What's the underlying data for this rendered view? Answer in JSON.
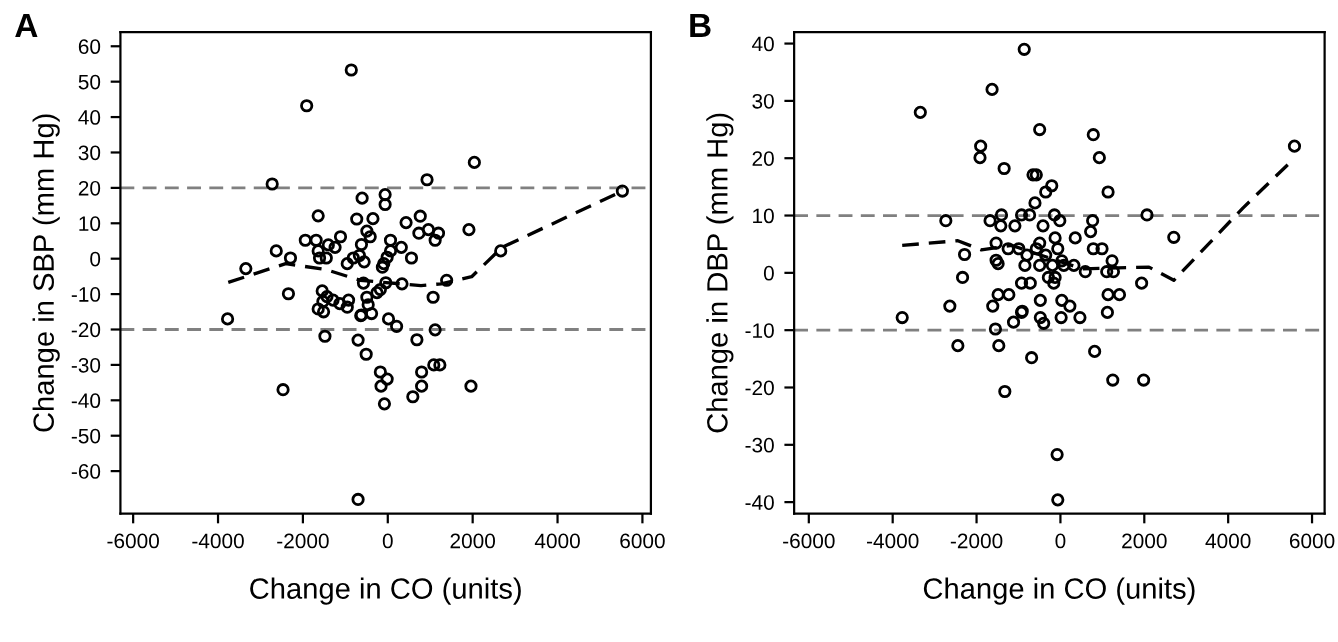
{
  "chart_data": [
    {
      "type": "scatter",
      "title": "A",
      "xlabel": "Change in CO (units)",
      "ylabel": "Change in SBP (mm Hg)",
      "xlim": [
        -6300,
        6200
      ],
      "ylim": [
        -72,
        64
      ],
      "xticks": [
        -6000,
        -4000,
        -2000,
        0,
        2000,
        4000,
        6000
      ],
      "yticks": [
        60,
        50,
        40,
        30,
        20,
        10,
        0,
        -10,
        -20,
        -30,
        -40,
        -50,
        -60
      ],
      "grid": false,
      "legend": false,
      "ref_lines": [
        {
          "axis": "y",
          "value": 20,
          "color": "#808080",
          "line_style": "dashed"
        },
        {
          "axis": "y",
          "value": -20,
          "color": "#808080",
          "line_style": "dashed"
        }
      ],
      "series": [
        {
          "color": "#000000",
          "marker": "circle",
          "x": [
            -860,
            -1911,
            2040,
            -2724,
            925,
            5528,
            -605,
            -63,
            -63,
            -1640,
            -732,
            -350,
            431,
            765,
            733,
            957,
            1195,
            1116,
            1912,
            -493,
            -414,
            -1114,
            -1943,
            -1688,
            -1401,
            -1242,
            -1640,
            -1608,
            -1449,
            -621,
            64,
            319,
            64,
            -15,
            558,
            -812,
            -669,
            -955,
            -557,
            -127,
            -95,
            -2628,
            -2293,
            -3345,
            2661,
            1387,
            -47,
            -573,
            335,
            -175,
            -255,
            -2341,
            -1545,
            -1433,
            -1290,
            -1131,
            -924,
            -1529,
            -955,
            -493,
            -462,
            -621,
            -382,
            1068,
            -1640,
            -1513,
            -3775,
            17,
            -637,
            208,
            1116,
            -1481,
            -700,
            686,
            -509,
            1084,
            1227,
            -175,
            797,
            -15,
            -159,
            797,
            1960,
            -2468,
            590,
            -79,
            -700
          ],
          "values": [
            53.3,
            43.2,
            27.2,
            21.1,
            22.3,
            19.1,
            17.1,
            18.1,
            15.3,
            12.1,
            11.2,
            11.3,
            10.2,
            12.0,
            7.2,
            8.2,
            7.2,
            5.2,
            8.2,
            7.8,
            6.2,
            6.2,
            5.2,
            5.2,
            3.9,
            3.2,
            2.2,
            0.2,
            0.2,
            4.0,
            5.2,
            3.2,
            2.2,
            0.4,
            0.2,
            0.2,
            0.9,
            -1.4,
            -0.9,
            -2.4,
            -1.4,
            2.2,
            0.2,
            -2.8,
            2.2,
            -6.1,
            -6.8,
            -6.9,
            -7.1,
            -8.7,
            -9.6,
            -9.9,
            -9.1,
            -10.7,
            -11.7,
            -12.7,
            -11.7,
            -12.1,
            -13.7,
            -10.9,
            -13.0,
            -15.9,
            -15.5,
            -10.9,
            -14.2,
            -15.0,
            -17.0,
            -17.0,
            -16.1,
            -19.1,
            -20.1,
            -21.9,
            -23.0,
            -22.9,
            -27.0,
            -30.0,
            -30.0,
            -32.0,
            -32.0,
            -34.0,
            -36.0,
            -36.0,
            -36.0,
            -37.0,
            -39.0,
            -41.0,
            -68.0
          ]
        },
        {
          "type": "line",
          "color": "#000000",
          "line_style": "dashed",
          "marker": "none",
          "x": [
            -3759,
            -2405,
            -1449,
            -652,
            782,
            1259,
            1976,
            2693,
            5528
          ],
          "values": [
            -6.7,
            -1.4,
            -3.1,
            -6.1,
            -7.6,
            -7.1,
            -5.1,
            3.2,
            19.1
          ]
        }
      ]
    },
    {
      "type": "scatter",
      "title": "B",
      "xlabel": "Change in CO (units)",
      "ylabel": "Change in DBP (mm Hg)",
      "xlim": [
        -6350,
        6300
      ],
      "ylim": [
        -42,
        42
      ],
      "xticks": [
        -6000,
        -4000,
        -2000,
        0,
        2000,
        4000,
        6000
      ],
      "yticks": [
        40,
        30,
        20,
        10,
        0,
        -10,
        -20,
        -30,
        -40
      ],
      "grid": false,
      "legend": false,
      "ref_lines": [
        {
          "axis": "y",
          "value": 10,
          "color": "#808080",
          "line_style": "dashed"
        },
        {
          "axis": "y",
          "value": -10,
          "color": "#808080",
          "line_style": "dashed"
        }
      ],
      "series": [
        {
          "color": "#000000",
          "marker": "circle",
          "x": [
            -863,
            -1630,
            -3341,
            -495,
            784,
            -1902,
            -1918,
            928,
            5581,
            -1342,
            -654,
            -575,
            -207,
            -351,
            1136,
            -607,
            -2733,
            -1678,
            -1406,
            -927,
            -735,
            -143,
            768,
            2064,
            2703,
            -1422,
            -1086,
            -415,
            -15,
            -127,
            353,
            720,
            -2286,
            -1534,
            -1534,
            -1486,
            -1246,
            -991,
            -799,
            -575,
            -495,
            -351,
            -63,
            33,
            -847,
            -495,
            -191,
            81,
            321,
            593,
            784,
            992,
            1232,
            1104,
            1264,
            -2334,
            -287,
            -127,
            -159,
            -927,
            -719,
            1936,
            -1486,
            -1230,
            -479,
            33,
            225,
            -2637,
            -1614,
            1136,
            1408,
            -927,
            -479,
            17,
            465,
            1120,
            -3773,
            -1118,
            -911,
            -399,
            -1550,
            -2446,
            -1470,
            -687,
            816,
            1248,
            1984,
            -1326,
            -79,
            -63
          ],
          "values": [
            39.0,
            32.0,
            28.0,
            25.0,
            24.1,
            22.1,
            20.1,
            20.1,
            22.1,
            18.2,
            17.1,
            17.1,
            15.2,
            14.1,
            14.1,
            12.2,
            9.1,
            9.1,
            10.1,
            10.1,
            10.1,
            10.1,
            9.1,
            10.1,
            6.2,
            8.2,
            8.2,
            8.2,
            9.1,
            6.1,
            6.1,
            7.2,
            3.2,
            5.2,
            2.2,
            1.6,
            4.2,
            4.2,
            3.1,
            4.2,
            5.2,
            3.1,
            4.2,
            2.1,
            1.3,
            1.3,
            1.3,
            1.3,
            1.3,
            0.2,
            4.2,
            4.2,
            2.1,
            0.2,
            0.2,
            -0.8,
            -0.8,
            -0.8,
            -1.8,
            -1.8,
            -1.8,
            -1.8,
            -3.8,
            -3.8,
            -4.8,
            -4.8,
            -5.8,
            -5.8,
            -5.8,
            -3.8,
            -3.8,
            -6.9,
            -7.8,
            -7.8,
            -7.8,
            -6.9,
            -7.8,
            -8.6,
            -6.7,
            -8.8,
            -9.8,
            -12.7,
            -12.7,
            -14.8,
            -13.7,
            -18.7,
            -18.7,
            -20.7,
            -31.7,
            -39.6
          ]
        },
        {
          "type": "line",
          "color": "#000000",
          "line_style": "dashed",
          "marker": "none",
          "x": [
            -3773,
            -2446,
            -1886,
            -1166,
            512,
            2112,
            2703,
            4350,
            5581
          ],
          "values": [
            4.8,
            5.6,
            4.0,
            4.8,
            0.7,
            1.0,
            -1.3,
            11.3,
            20.0
          ]
        }
      ]
    }
  ]
}
